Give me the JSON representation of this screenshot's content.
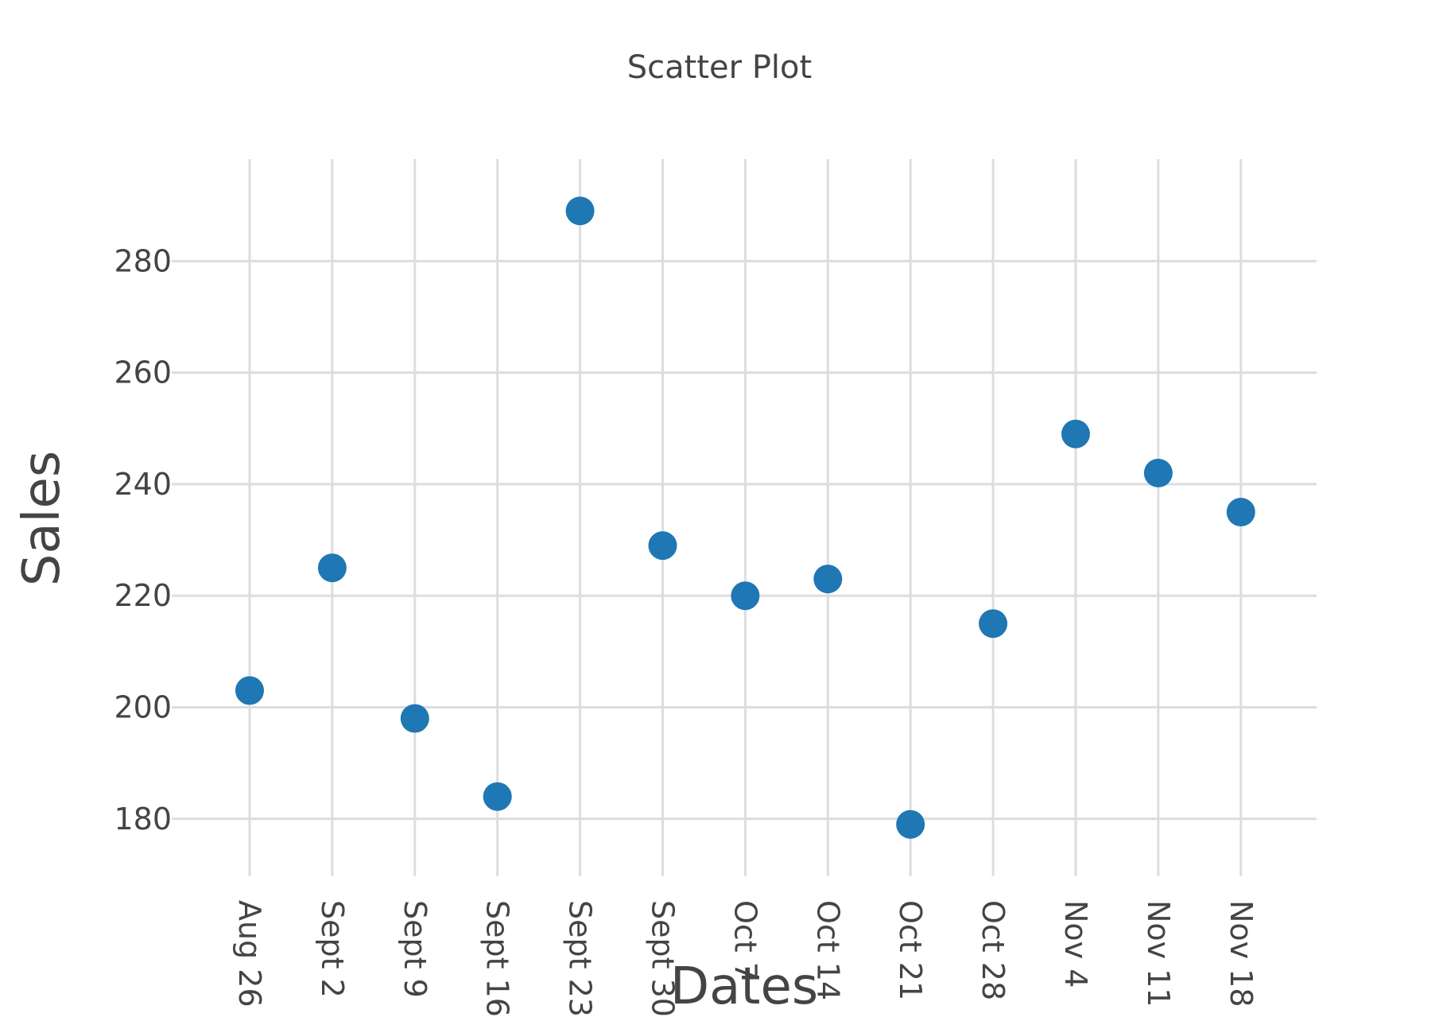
{
  "chart_data": {
    "type": "scatter",
    "title": "Scatter Plot",
    "xlabel": "Dates",
    "ylabel": "Sales",
    "categories": [
      "Aug 26",
      "Sept 2",
      "Sept 9",
      "Sept 16",
      "Sept 23",
      "Sept 30",
      "Oct 7",
      "Oct 14",
      "Oct 21",
      "Oct 28",
      "Nov 4",
      "Nov 11",
      "Nov 18"
    ],
    "series": [
      {
        "values": [
          203,
          225,
          198,
          184,
          289,
          229,
          220,
          223,
          179,
          215,
          249,
          242,
          235
        ],
        "color": "#1f77b4"
      }
    ],
    "ylim": [
      169.7,
      298.3
    ],
    "yticks": [
      180,
      200,
      220,
      240,
      260,
      280
    ],
    "xgrid": true,
    "ygrid": true,
    "legend": "none"
  }
}
